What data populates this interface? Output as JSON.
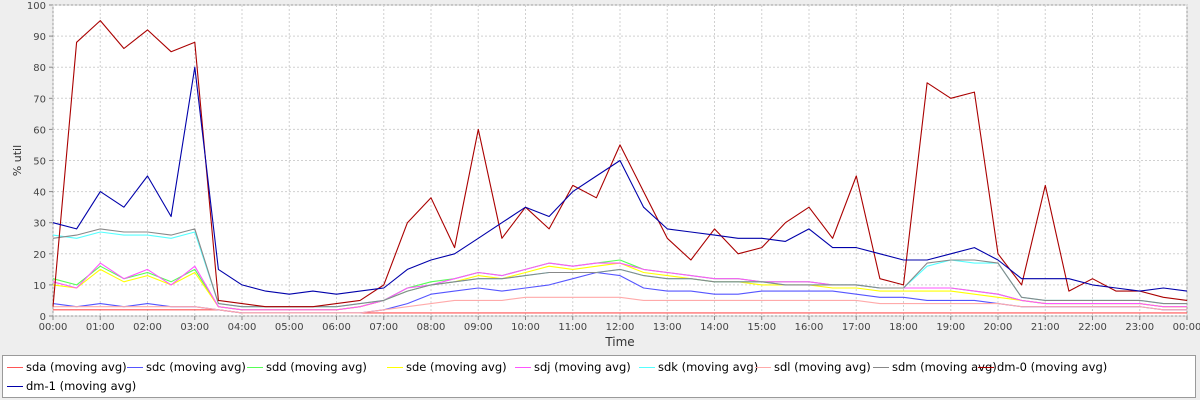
{
  "chart_data": {
    "type": "line",
    "title": "",
    "xlabel": "Time",
    "ylabel": "% util",
    "ylim": [
      0,
      100
    ],
    "xlim": [
      "00:00",
      "24:00"
    ],
    "yticks": [
      "0",
      "10",
      "20",
      "30",
      "40",
      "50",
      "60",
      "70",
      "80",
      "90",
      "100"
    ],
    "xticks": [
      "00:00",
      "01:00",
      "02:00",
      "03:00",
      "04:00",
      "05:00",
      "06:00",
      "07:00",
      "08:00",
      "09:00",
      "10:00",
      "11:00",
      "12:00",
      "13:00",
      "14:00",
      "15:00",
      "16:00",
      "17:00",
      "18:00",
      "19:00",
      "20:00",
      "21:00",
      "22:00",
      "23:00",
      "00:00"
    ],
    "grid": true,
    "legend_position": "bottom",
    "x": [
      "00:00",
      "00:30",
      "01:00",
      "01:30",
      "02:00",
      "02:30",
      "03:00",
      "03:30",
      "04:00",
      "04:30",
      "05:00",
      "05:30",
      "06:00",
      "06:30",
      "07:00",
      "07:30",
      "08:00",
      "08:30",
      "09:00",
      "09:30",
      "10:00",
      "10:30",
      "11:00",
      "11:30",
      "12:00",
      "12:30",
      "13:00",
      "13:30",
      "14:00",
      "14:30",
      "15:00",
      "15:30",
      "16:00",
      "16:30",
      "17:00",
      "17:30",
      "18:00",
      "18:30",
      "19:00",
      "19:30",
      "20:00",
      "20:30",
      "21:00",
      "21:30",
      "22:00",
      "22:30",
      "23:00",
      "23:30",
      "24:00"
    ],
    "series": [
      {
        "name": "sda (moving avg)",
        "color": "#ff5555",
        "values": [
          2,
          2,
          2,
          2,
          2,
          2,
          2,
          2,
          1,
          1,
          1,
          1,
          1,
          1,
          1,
          1,
          1,
          1,
          1,
          1,
          1,
          1,
          1,
          1,
          1,
          1,
          1,
          1,
          1,
          1,
          1,
          1,
          1,
          1,
          1,
          1,
          1,
          1,
          1,
          1,
          1,
          1,
          1,
          1,
          1,
          1,
          1,
          1,
          1
        ]
      },
      {
        "name": "sdc (moving avg)",
        "color": "#5555ff",
        "values": [
          4,
          3,
          4,
          3,
          4,
          3,
          3,
          2,
          1,
          1,
          1,
          1,
          1,
          1,
          2,
          4,
          7,
          8,
          9,
          8,
          9,
          10,
          12,
          14,
          13,
          9,
          8,
          8,
          7,
          7,
          8,
          8,
          8,
          8,
          7,
          6,
          6,
          5,
          5,
          5,
          4,
          3,
          3,
          3,
          3,
          3,
          3,
          2,
          2
        ]
      },
      {
        "name": "sdd (moving avg)",
        "color": "#55ff55",
        "values": [
          12,
          10,
          16,
          12,
          14,
          11,
          15,
          3,
          2,
          2,
          2,
          2,
          2,
          3,
          5,
          9,
          11,
          12,
          14,
          13,
          15,
          17,
          16,
          17,
          18,
          15,
          14,
          13,
          12,
          12,
          11,
          11,
          11,
          10,
          10,
          9,
          9,
          9,
          9,
          8,
          7,
          5,
          4,
          4,
          4,
          4,
          4,
          3,
          3
        ]
      },
      {
        "name": "sde (moving avg)",
        "color": "#ffff00",
        "values": [
          10,
          9,
          15,
          11,
          13,
          10,
          14,
          3,
          2,
          2,
          2,
          2,
          2,
          3,
          5,
          8,
          10,
          11,
          13,
          12,
          14,
          16,
          15,
          16,
          17,
          14,
          13,
          12,
          11,
          11,
          10,
          10,
          10,
          9,
          9,
          8,
          8,
          8,
          8,
          7,
          6,
          5,
          4,
          4,
          4,
          4,
          4,
          3,
          3
        ]
      },
      {
        "name": "sdj (moving avg)",
        "color": "#ff55ff",
        "values": [
          11,
          9,
          17,
          12,
          15,
          10,
          16,
          3,
          2,
          2,
          2,
          2,
          2,
          3,
          5,
          9,
          10,
          12,
          14,
          13,
          15,
          17,
          16,
          17,
          17,
          15,
          14,
          13,
          12,
          12,
          11,
          11,
          11,
          10,
          10,
          9,
          9,
          9,
          9,
          8,
          7,
          5,
          4,
          4,
          4,
          4,
          4,
          3,
          3
        ]
      },
      {
        "name": "sdk (moving avg)",
        "color": "#55ffff",
        "values": [
          26,
          25,
          27,
          26,
          26,
          25,
          27,
          4,
          3,
          3,
          3,
          3,
          3,
          4,
          5,
          8,
          10,
          11,
          12,
          12,
          13,
          14,
          14,
          14,
          15,
          13,
          12,
          12,
          11,
          11,
          11,
          10,
          10,
          10,
          10,
          9,
          9,
          16,
          18,
          17,
          17,
          6,
          5,
          5,
          5,
          5,
          5,
          4,
          4
        ]
      },
      {
        "name": "sdl (moving avg)",
        "color": "#ffaaaa",
        "values": [
          3,
          3,
          3,
          3,
          3,
          3,
          3,
          2,
          1,
          1,
          1,
          1,
          1,
          1,
          2,
          3,
          4,
          5,
          5,
          5,
          6,
          6,
          6,
          6,
          6,
          5,
          5,
          5,
          5,
          5,
          5,
          5,
          5,
          5,
          5,
          4,
          4,
          4,
          4,
          4,
          4,
          3,
          3,
          3,
          3,
          3,
          3,
          2,
          2
        ]
      },
      {
        "name": "sdm (moving avg)",
        "color": "#888888",
        "values": [
          25,
          26,
          28,
          27,
          27,
          26,
          28,
          4,
          3,
          3,
          3,
          3,
          3,
          4,
          5,
          8,
          10,
          11,
          12,
          12,
          13,
          14,
          14,
          14,
          15,
          13,
          12,
          12,
          11,
          11,
          11,
          10,
          10,
          10,
          10,
          9,
          9,
          17,
          18,
          18,
          17,
          6,
          5,
          5,
          5,
          5,
          5,
          4,
          4
        ]
      },
      {
        "name": "dm-0 (moving avg)",
        "color": "#aa0000",
        "values": [
          3,
          88,
          95,
          86,
          92,
          85,
          88,
          5,
          4,
          3,
          3,
          3,
          4,
          5,
          10,
          30,
          38,
          22,
          60,
          25,
          35,
          28,
          42,
          38,
          55,
          40,
          25,
          18,
          28,
          20,
          22,
          30,
          35,
          25,
          45,
          12,
          10,
          75,
          70,
          72,
          20,
          10,
          42,
          8,
          12,
          8,
          8,
          6,
          5
        ]
      },
      {
        "name": "dm-1 (moving avg)",
        "color": "#0000aa",
        "values": [
          30,
          28,
          40,
          35,
          45,
          32,
          80,
          15,
          10,
          8,
          7,
          8,
          7,
          8,
          9,
          15,
          18,
          20,
          25,
          30,
          35,
          32,
          40,
          45,
          50,
          35,
          28,
          27,
          26,
          25,
          25,
          24,
          28,
          22,
          22,
          20,
          18,
          18,
          20,
          22,
          18,
          12,
          12,
          12,
          10,
          9,
          8,
          9,
          8
        ]
      }
    ]
  }
}
